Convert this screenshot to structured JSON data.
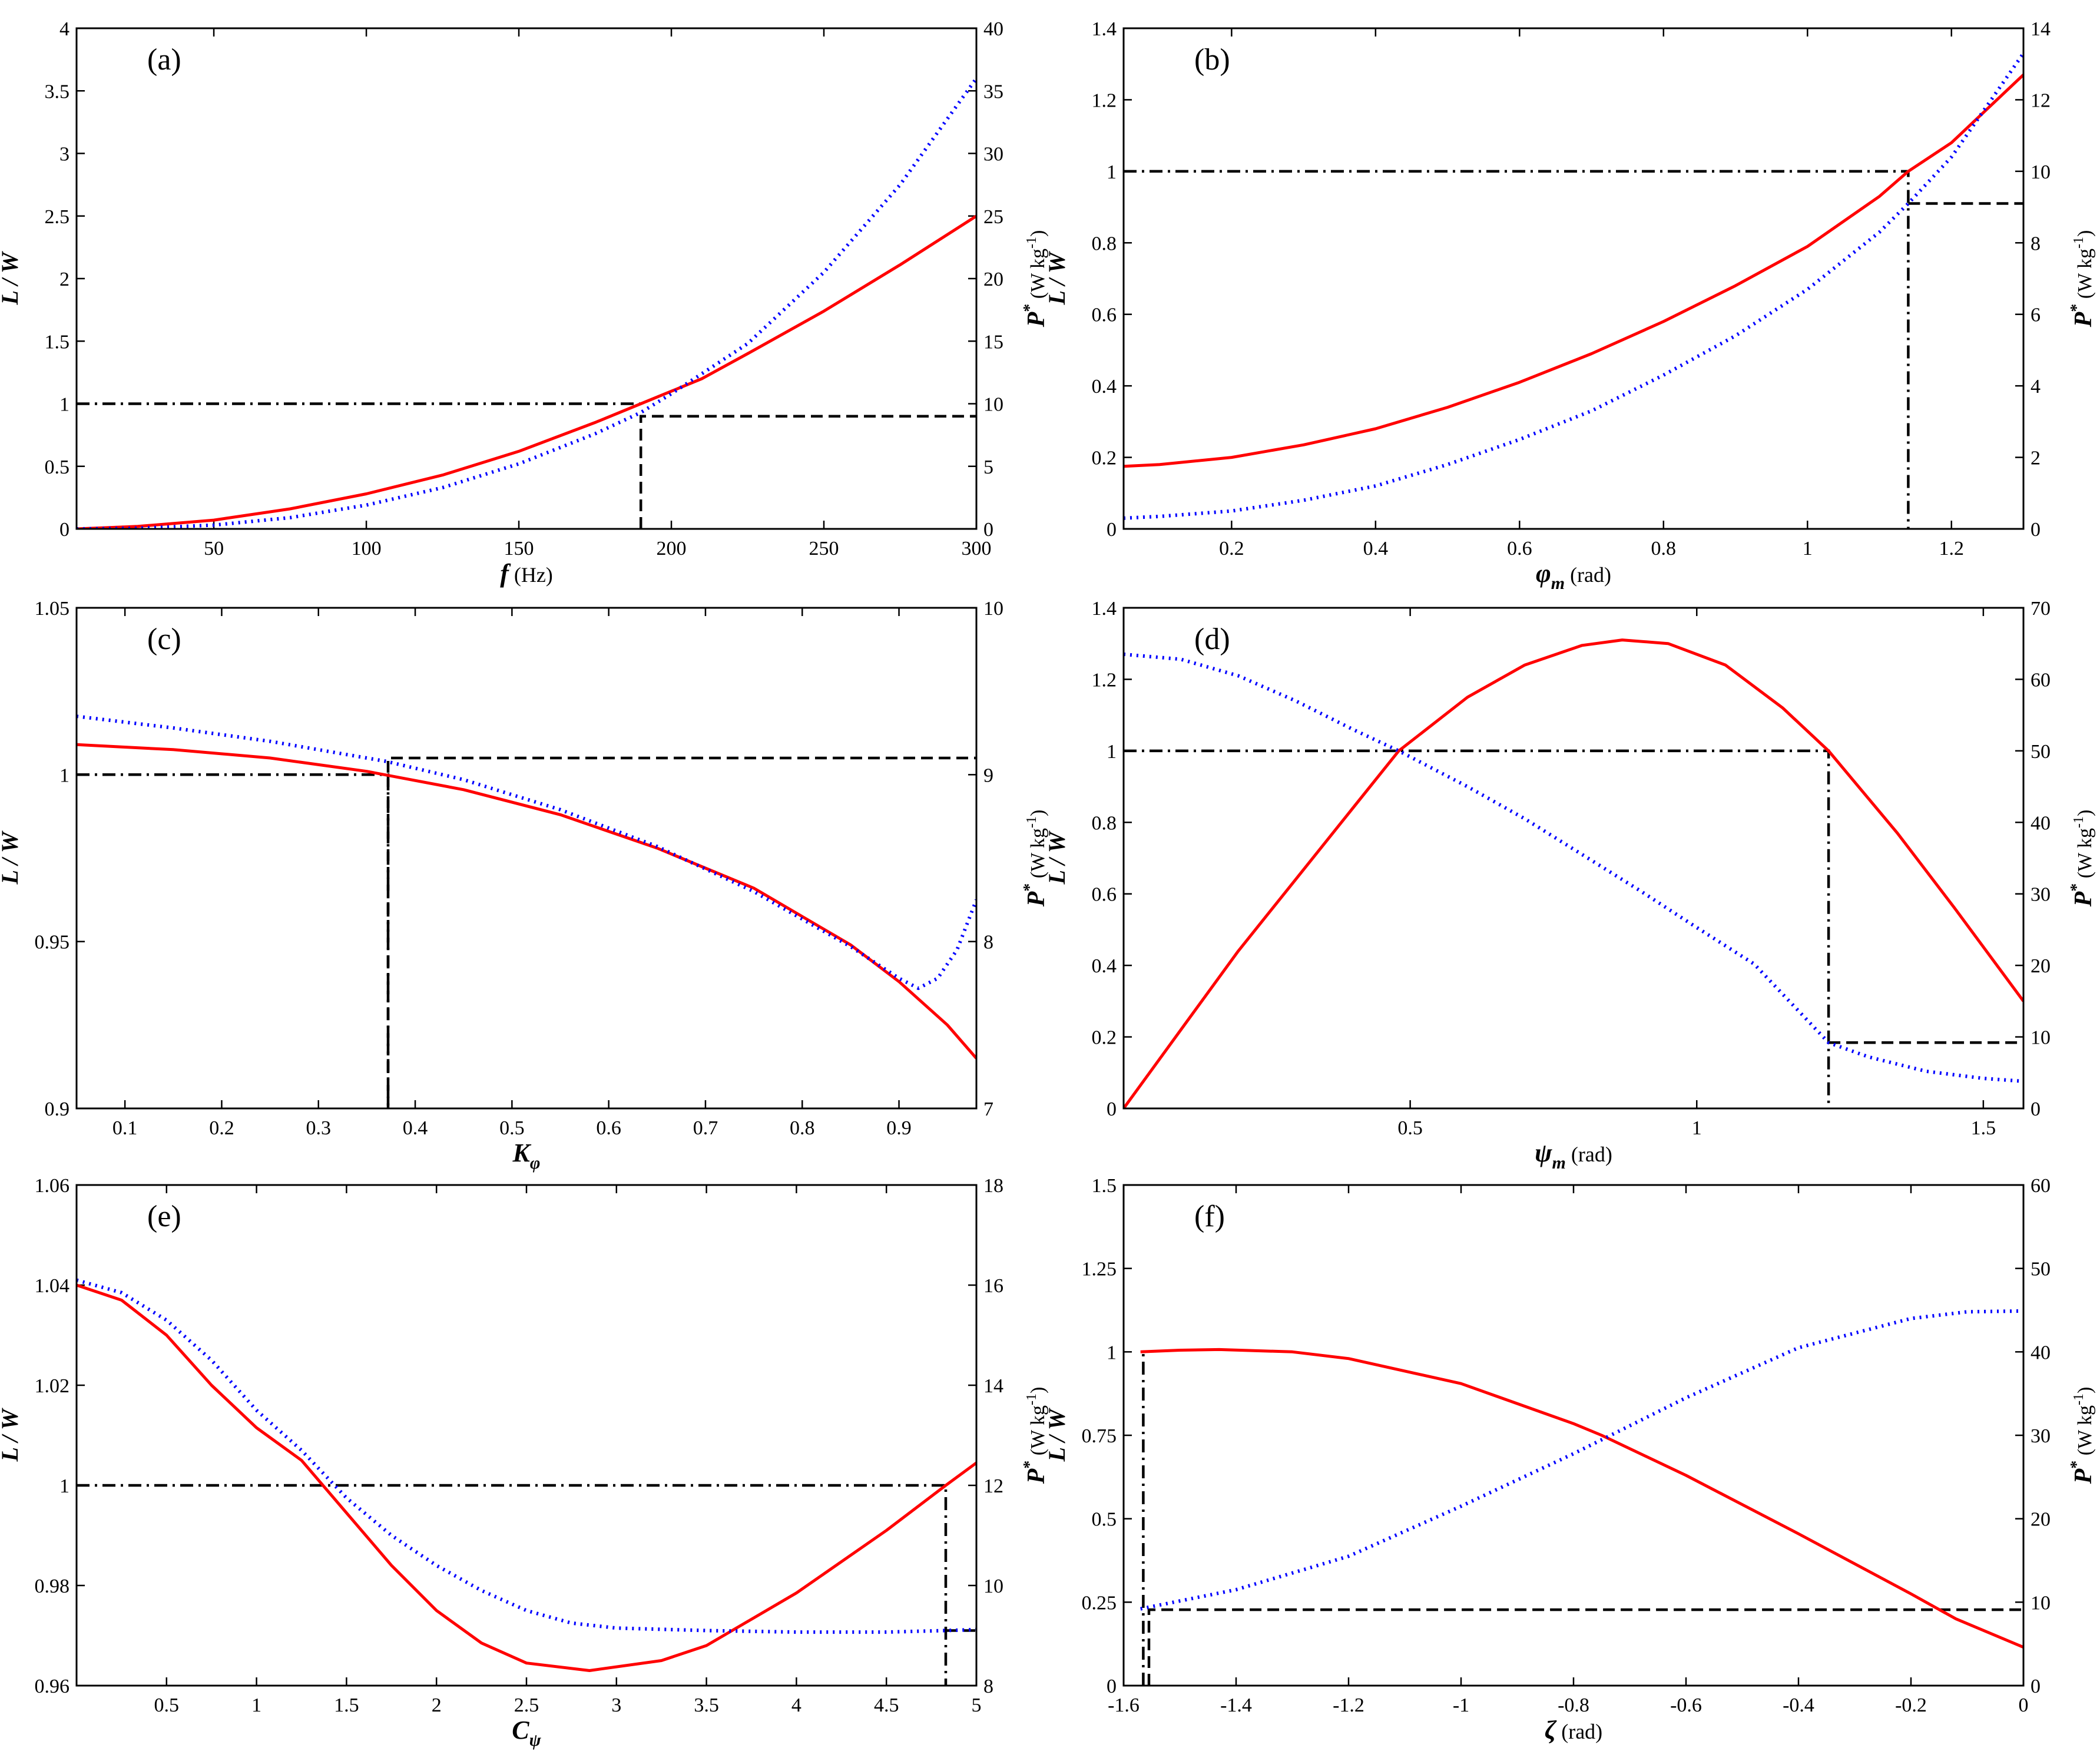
{
  "figure": {
    "title": "",
    "panels_count": 6
  },
  "colors": {
    "lw_curve": "#ff0000",
    "power_curve": "#0000ff",
    "reference": "#000000"
  },
  "chart_data": [
    {
      "type": "line",
      "panel_label": "(a)",
      "xlabel": {
        "symbol": "f",
        "unit": " (Hz)"
      },
      "ylabel_left": "L / W",
      "ylabel_right": {
        "symbol": "P",
        "sup": "*",
        "unit": " (W kg",
        "unit_sup": "-1",
        "unit_close": ")"
      },
      "xlim": [
        5,
        300
      ],
      "ylim_left": [
        0,
        4
      ],
      "ylim_right": [
        0,
        40
      ],
      "xticks": [
        50,
        100,
        150,
        200,
        250,
        300
      ],
      "xtick_labels": [
        "50",
        "100",
        "150",
        "200",
        "250",
        "300"
      ],
      "yticks_left": [
        0,
        0.5,
        1,
        1.5,
        2,
        2.5,
        3,
        3.5,
        4
      ],
      "ytick_labels_left": [
        "0",
        "0.5",
        "1",
        "1.5",
        "2",
        "2.5",
        "3",
        "3.5",
        "4"
      ],
      "yticks_right": [
        0,
        5,
        10,
        15,
        20,
        25,
        30,
        35,
        40
      ],
      "ytick_labels_right": [
        "0",
        "5",
        "10",
        "15",
        "20",
        "25",
        "30",
        "35",
        "40"
      ],
      "series": [
        {
          "name": "L/W",
          "axis": "left",
          "style": "solid",
          "x": [
            5,
            25,
            50,
            75,
            100,
            125,
            150,
            175,
            190,
            210,
            225,
            250,
            275,
            300
          ],
          "y": [
            0,
            0.02,
            0.07,
            0.16,
            0.28,
            0.43,
            0.62,
            0.85,
            1.0,
            1.2,
            1.4,
            1.74,
            2.11,
            2.5
          ]
        },
        {
          "name": "P*",
          "axis": "right",
          "style": "dotted",
          "x": [
            5,
            25,
            50,
            75,
            100,
            125,
            150,
            175,
            190,
            200,
            225,
            250,
            275,
            300
          ],
          "y": [
            0,
            0.05,
            0.3,
            0.9,
            1.9,
            3.3,
            5.2,
            7.6,
            9.3,
            10.8,
            14.8,
            20.5,
            27.5,
            36
          ]
        }
      ],
      "reference_lines": [
        {
          "axis": "left",
          "style": "dashdot",
          "points": [
            [
              5,
              1
            ],
            [
              190,
              1
            ]
          ]
        },
        {
          "axis": "right",
          "style": "dashed",
          "points": [
            [
              190,
              0
            ],
            [
              190,
              9
            ],
            [
              300,
              9
            ]
          ]
        }
      ]
    },
    {
      "type": "line",
      "panel_label": "(b)",
      "xlabel": {
        "symbol": "φ",
        "sub": "m",
        "unit": " (rad)"
      },
      "ylabel_left": "L / W",
      "ylabel_right": {
        "symbol": "P",
        "sup": "*",
        "unit": " (W kg",
        "unit_sup": "-1",
        "unit_close": ")"
      },
      "xlim": [
        0.05,
        1.3
      ],
      "ylim_left": [
        0,
        1.4
      ],
      "ylim_right": [
        0,
        14
      ],
      "xticks": [
        0.2,
        0.4,
        0.6,
        0.8,
        1,
        1.2
      ],
      "xtick_labels": [
        "0.2",
        "0.4",
        "0.6",
        "0.8",
        "1",
        "1.2"
      ],
      "yticks_left": [
        0,
        0.2,
        0.4,
        0.6,
        0.8,
        1,
        1.2,
        1.4
      ],
      "ytick_labels_left": [
        "0",
        "0.2",
        "0.4",
        "0.6",
        "0.8",
        "1",
        "1.2",
        "1.4"
      ],
      "yticks_right": [
        0,
        2,
        4,
        6,
        8,
        10,
        12,
        14
      ],
      "ytick_labels_right": [
        "0",
        "2",
        "4",
        "6",
        "8",
        "10",
        "12",
        "14"
      ],
      "series": [
        {
          "name": "L/W",
          "axis": "left",
          "style": "solid",
          "x": [
            0.05,
            0.1,
            0.2,
            0.3,
            0.4,
            0.5,
            0.6,
            0.7,
            0.8,
            0.9,
            1.0,
            1.1,
            1.14,
            1.2,
            1.3
          ],
          "y": [
            0.175,
            0.18,
            0.2,
            0.235,
            0.28,
            0.34,
            0.41,
            0.49,
            0.58,
            0.68,
            0.79,
            0.93,
            1.0,
            1.08,
            1.27
          ]
        },
        {
          "name": "P*",
          "axis": "right",
          "style": "dotted",
          "x": [
            0.05,
            0.1,
            0.2,
            0.3,
            0.4,
            0.5,
            0.6,
            0.7,
            0.8,
            0.9,
            1.0,
            1.1,
            1.14,
            1.2,
            1.3
          ],
          "y": [
            0.3,
            0.35,
            0.5,
            0.8,
            1.2,
            1.8,
            2.5,
            3.3,
            4.3,
            5.4,
            6.7,
            8.3,
            9.1,
            10.4,
            13.3
          ]
        }
      ],
      "reference_lines": [
        {
          "axis": "left",
          "style": "dashdot",
          "points": [
            [
              0.05,
              1
            ],
            [
              1.14,
              1
            ],
            [
              1.14,
              0
            ]
          ]
        },
        {
          "axis": "right",
          "style": "dashed",
          "points": [
            [
              1.14,
              9.1
            ],
            [
              1.3,
              9.1
            ]
          ]
        }
      ]
    },
    {
      "type": "line",
      "panel_label": "(c)",
      "xlabel": {
        "symbol": "K",
        "sub": "φ",
        "unit": ""
      },
      "ylabel_left": "L / W",
      "ylabel_right": {
        "symbol": "P",
        "sup": "*",
        "unit": " (W kg",
        "unit_sup": "-1",
        "unit_close": ")"
      },
      "xlim": [
        0.05,
        0.98
      ],
      "ylim_left": [
        0.9,
        1.05
      ],
      "ylim_right": [
        7,
        10
      ],
      "xticks": [
        0.1,
        0.2,
        0.3,
        0.4,
        0.5,
        0.6,
        0.7,
        0.8,
        0.9
      ],
      "xtick_labels": [
        "0.1",
        "0.2",
        "0.3",
        "0.4",
        "0.5",
        "0.6",
        "0.7",
        "0.8",
        "0.9"
      ],
      "yticks_left": [
        0.9,
        0.95,
        1,
        1.05
      ],
      "ytick_labels_left": [
        "0.9",
        "0.95",
        "1",
        "1.05"
      ],
      "yticks_right": [
        7,
        8,
        9,
        10
      ],
      "ytick_labels_right": [
        "7",
        "8",
        "9",
        "10"
      ],
      "series": [
        {
          "name": "L/W",
          "axis": "left",
          "style": "solid",
          "x": [
            0.05,
            0.15,
            0.25,
            0.35,
            0.45,
            0.55,
            0.65,
            0.75,
            0.85,
            0.9,
            0.95,
            0.98
          ],
          "y": [
            1.009,
            1.0075,
            1.005,
            1.001,
            0.9955,
            0.988,
            0.978,
            0.966,
            0.949,
            0.938,
            0.925,
            0.915
          ]
        },
        {
          "name": "P*",
          "axis": "right",
          "style": "dotted",
          "x": [
            0.05,
            0.15,
            0.25,
            0.37,
            0.45,
            0.55,
            0.65,
            0.75,
            0.85,
            0.9,
            0.92,
            0.94,
            0.96,
            0.98
          ],
          "y": [
            9.35,
            9.28,
            9.2,
            9.08,
            8.97,
            8.79,
            8.57,
            8.3,
            7.97,
            7.78,
            7.72,
            7.78,
            7.95,
            8.25
          ]
        }
      ],
      "reference_lines": [
        {
          "axis": "left",
          "style": "dashdot",
          "points": [
            [
              0.05,
              1
            ],
            [
              0.372,
              1
            ],
            [
              0.372,
              0.9
            ]
          ]
        },
        {
          "axis": "right",
          "style": "dashed",
          "points": [
            [
              0.372,
              7
            ],
            [
              0.372,
              9.1
            ],
            [
              0.98,
              9.1
            ]
          ]
        }
      ]
    },
    {
      "type": "line",
      "panel_label": "(d)",
      "xlabel": {
        "symbol": "ψ",
        "sub": "m",
        "unit": " (rad)"
      },
      "ylabel_left": "L / W",
      "ylabel_right": {
        "symbol": "P",
        "sup": "*",
        "unit": " (W kg",
        "unit_sup": "-1",
        "unit_close": ")"
      },
      "xlim": [
        0,
        1.57
      ],
      "ylim_left": [
        0,
        1.4
      ],
      "ylim_right": [
        0,
        70
      ],
      "xticks": [
        0.5,
        1,
        1.5
      ],
      "xtick_labels": [
        "0.5",
        "1",
        "1.5"
      ],
      "yticks_left": [
        0,
        0.2,
        0.4,
        0.6,
        0.8,
        1,
        1.2,
        1.4
      ],
      "ytick_labels_left": [
        "0",
        "0.2",
        "0.4",
        "0.6",
        "0.8",
        "1",
        "1.2",
        "1.4"
      ],
      "yticks_right": [
        0,
        10,
        20,
        30,
        40,
        50,
        60,
        70
      ],
      "ytick_labels_right": [
        "0",
        "10",
        "20",
        "30",
        "40",
        "50",
        "60",
        "70"
      ],
      "series": [
        {
          "name": "L/W",
          "axis": "left",
          "style": "solid",
          "x": [
            0,
            0.1,
            0.2,
            0.3,
            0.4,
            0.48,
            0.6,
            0.7,
            0.8,
            0.87,
            0.95,
            1.05,
            1.15,
            1.23,
            1.35,
            1.45,
            1.57
          ],
          "y": [
            0,
            0.22,
            0.44,
            0.64,
            0.84,
            1.0,
            1.15,
            1.24,
            1.295,
            1.31,
            1.3,
            1.24,
            1.12,
            1.0,
            0.77,
            0.56,
            0.3
          ]
        },
        {
          "name": "P*",
          "axis": "right",
          "style": "dotted",
          "x": [
            0,
            0.1,
            0.2,
            0.3,
            0.4,
            0.48,
            0.6,
            0.7,
            0.8,
            0.9,
            1.0,
            1.1,
            1.23,
            1.3,
            1.4,
            1.5,
            1.57
          ],
          "y": [
            63.5,
            62.8,
            60.5,
            57,
            53,
            50,
            45,
            40.5,
            35.5,
            30.5,
            25.3,
            20.2,
            9.2,
            7.2,
            5.2,
            4.2,
            3.8
          ]
        }
      ],
      "reference_lines": [
        {
          "axis": "left",
          "style": "dashdot",
          "points": [
            [
              0,
              1
            ],
            [
              1.23,
              1
            ],
            [
              1.23,
              0
            ]
          ]
        },
        {
          "axis": "right",
          "style": "dashed",
          "points": [
            [
              1.23,
              9.2
            ],
            [
              1.57,
              9.2
            ]
          ]
        }
      ]
    },
    {
      "type": "line",
      "panel_label": "(e)",
      "xlabel": {
        "symbol": "C",
        "sub": "ψ",
        "unit": ""
      },
      "ylabel_left": "L / W",
      "ylabel_right": {
        "symbol": "P",
        "sup": "*",
        "unit": " (W kg",
        "unit_sup": "-1",
        "unit_close": ")"
      },
      "xlim": [
        0,
        5
      ],
      "ylim_left": [
        0.96,
        1.06
      ],
      "ylim_right": [
        8,
        18
      ],
      "xticks": [
        0.5,
        1,
        1.5,
        2,
        2.5,
        3,
        3.5,
        4,
        4.5,
        5
      ],
      "xtick_labels": [
        "0.5",
        "1",
        "1.5",
        "2",
        "2.5",
        "3",
        "3.5",
        "4",
        "4.5",
        "5"
      ],
      "yticks_left": [
        0.96,
        0.98,
        1,
        1.02,
        1.04,
        1.06
      ],
      "ytick_labels_left": [
        "0.96",
        "0.98",
        "1",
        "1.02",
        "1.04",
        "1.06"
      ],
      "yticks_right": [
        8,
        10,
        12,
        14,
        16,
        18
      ],
      "ytick_labels_right": [
        "8",
        "10",
        "12",
        "14",
        "16",
        "18"
      ],
      "series": [
        {
          "name": "L/W",
          "axis": "left",
          "style": "solid",
          "x": [
            0,
            0.25,
            0.5,
            0.75,
            1,
            1.25,
            1.5,
            1.75,
            2,
            2.25,
            2.5,
            2.85,
            3.25,
            3.5,
            4,
            4.5,
            4.83,
            5
          ],
          "y": [
            1.04,
            1.037,
            1.03,
            1.02,
            1.0115,
            1.005,
            0.9945,
            0.984,
            0.975,
            0.9685,
            0.9645,
            0.963,
            0.965,
            0.968,
            0.9785,
            0.991,
            1.0,
            1.0045
          ]
        },
        {
          "name": "P*",
          "axis": "right",
          "style": "dotted",
          "x": [
            0,
            0.25,
            0.5,
            0.75,
            1,
            1.25,
            1.5,
            1.75,
            2,
            2.25,
            2.5,
            2.75,
            3,
            3.5,
            4,
            4.5,
            4.83,
            5
          ],
          "y": [
            16.1,
            15.85,
            15.3,
            14.5,
            13.5,
            12.7,
            11.75,
            11.0,
            10.4,
            9.9,
            9.5,
            9.25,
            9.15,
            9.1,
            9.07,
            9.07,
            9.1,
            9.12
          ]
        }
      ],
      "reference_lines": [
        {
          "axis": "left",
          "style": "dashdot",
          "points": [
            [
              0,
              1
            ],
            [
              4.83,
              1
            ],
            [
              4.83,
              0.96
            ]
          ]
        },
        {
          "axis": "right",
          "style": "dashed",
          "points": [
            [
              4.83,
              9.1
            ],
            [
              5,
              9.1
            ]
          ]
        }
      ]
    },
    {
      "type": "line",
      "panel_label": "(f)",
      "xlabel": {
        "symbol": "ζ",
        "sub": "",
        "unit": " (rad)"
      },
      "ylabel_left": "L / W",
      "ylabel_right": {
        "symbol": "P",
        "sup": "*",
        "unit": " (W kg",
        "unit_sup": "-1",
        "unit_close": ")"
      },
      "xlim": [
        -1.6,
        0
      ],
      "ylim_left": [
        0,
        1.5
      ],
      "ylim_right": [
        0,
        60
      ],
      "xticks": [
        -1.6,
        -1.4,
        -1.2,
        -1,
        -0.8,
        -0.6,
        -0.4,
        -0.2,
        0
      ],
      "xtick_labels": [
        "-1.6",
        "-1.4",
        "-1.2",
        "-1",
        "-0.8",
        "-0.6",
        "-0.4",
        "-0.2",
        "0"
      ],
      "yticks_left": [
        0,
        0.25,
        0.5,
        0.75,
        1,
        1.25,
        1.5
      ],
      "ytick_labels_left": [
        "0",
        "0.25",
        "0.5",
        "0.75",
        "1",
        "1.25",
        "1.5"
      ],
      "yticks_right": [
        0,
        10,
        20,
        30,
        40,
        50,
        60
      ],
      "ytick_labels_right": [
        "0",
        "10",
        "20",
        "30",
        "40",
        "50",
        "60"
      ],
      "series": [
        {
          "name": "L/W",
          "axis": "left",
          "style": "solid",
          "x": [
            -1.57,
            -1.5,
            -1.43,
            -1.3,
            -1.2,
            -1.0,
            -0.8,
            -0.75,
            -0.6,
            -0.4,
            -0.2,
            -0.12,
            0
          ],
          "y": [
            1.0,
            1.005,
            1.007,
            1.0,
            0.98,
            0.905,
            0.785,
            0.75,
            0.63,
            0.455,
            0.275,
            0.2,
            0.115
          ]
        },
        {
          "name": "P*",
          "axis": "right",
          "style": "dotted",
          "x": [
            -1.57,
            -1.4,
            -1.2,
            -1.0,
            -0.8,
            -0.74,
            -0.6,
            -0.4,
            -0.2,
            -0.1,
            0
          ],
          "y": [
            9.2,
            11.5,
            15.5,
            21.5,
            27.8,
            29.8,
            34.5,
            40.5,
            44,
            44.8,
            44.9
          ]
        }
      ],
      "reference_lines": [
        {
          "axis": "left",
          "style": "dashdot",
          "points": [
            [
              -1.565,
              0
            ],
            [
              -1.565,
              1
            ]
          ]
        },
        {
          "axis": "right",
          "style": "dashed",
          "points": [
            [
              -1.555,
              0
            ],
            [
              -1.555,
              9.1
            ],
            [
              0,
              9.1
            ]
          ]
        }
      ]
    }
  ]
}
